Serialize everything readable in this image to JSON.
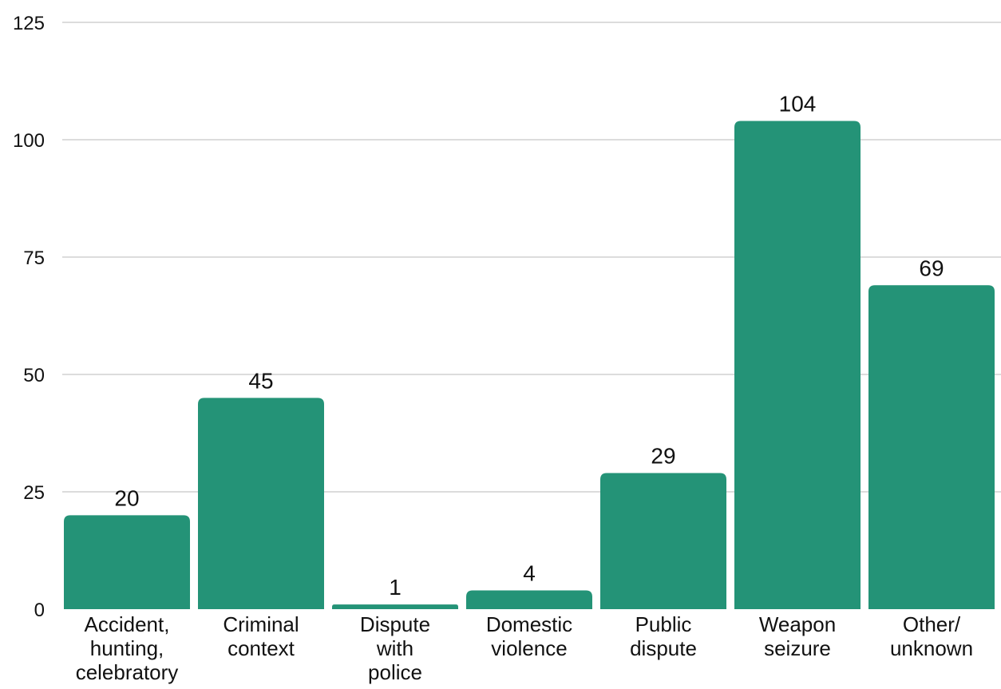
{
  "chart_data": {
    "type": "bar",
    "title": "",
    "xlabel": "",
    "ylabel": "",
    "categories": [
      [
        "Accident,",
        "hunting,",
        "celebratory"
      ],
      [
        "Criminal",
        "context"
      ],
      [
        "Dispute",
        "with",
        "police"
      ],
      [
        "Domestic",
        "violence"
      ],
      [
        "Public",
        "dispute"
      ],
      [
        "Weapon",
        "seizure"
      ],
      [
        "Other/",
        "unknown"
      ]
    ],
    "values": [
      20,
      45,
      1,
      4,
      29,
      104,
      69
    ],
    "ylim": [
      0,
      125
    ],
    "yticks": [
      0,
      25,
      50,
      75,
      100,
      125
    ],
    "grid": true,
    "data_labels": true,
    "legend": "none",
    "colors": {
      "bar": "#249377",
      "grid": "#c8c8c8",
      "text": "#111111",
      "background": "#ffffff"
    }
  }
}
